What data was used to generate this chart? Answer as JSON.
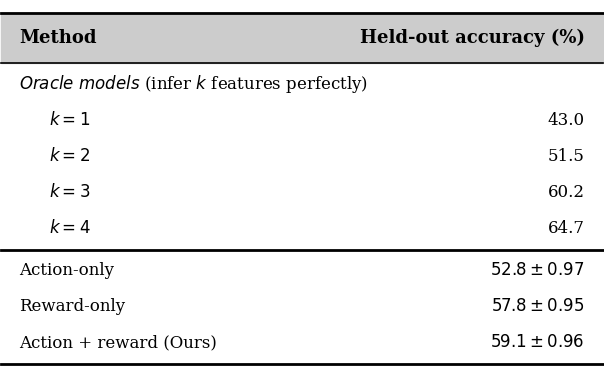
{
  "title_col1": "Method",
  "title_col2": "Held-out accuracy (%)",
  "oracle_rows": [
    {
      "method": "$k = 1$",
      "value": "43.0"
    },
    {
      "method": "$k = 2$",
      "value": "51.5"
    },
    {
      "method": "$k = 3$",
      "value": "60.2"
    },
    {
      "method": "$k = 4$",
      "value": "64.7"
    }
  ],
  "model_rows": [
    {
      "method": "Action-only",
      "value": "$52.8 \\pm 0.97$"
    },
    {
      "method": "Reward-only",
      "value": "$57.8 \\pm 0.95$"
    },
    {
      "method": "Action + reward (Ours)",
      "value": "$59.1 \\pm 0.96$"
    }
  ],
  "bg_color": "#ffffff",
  "header_bg": "#cccccc",
  "text_color": "#000000",
  "figsize": [
    6.04,
    3.9
  ],
  "dpi": 100
}
